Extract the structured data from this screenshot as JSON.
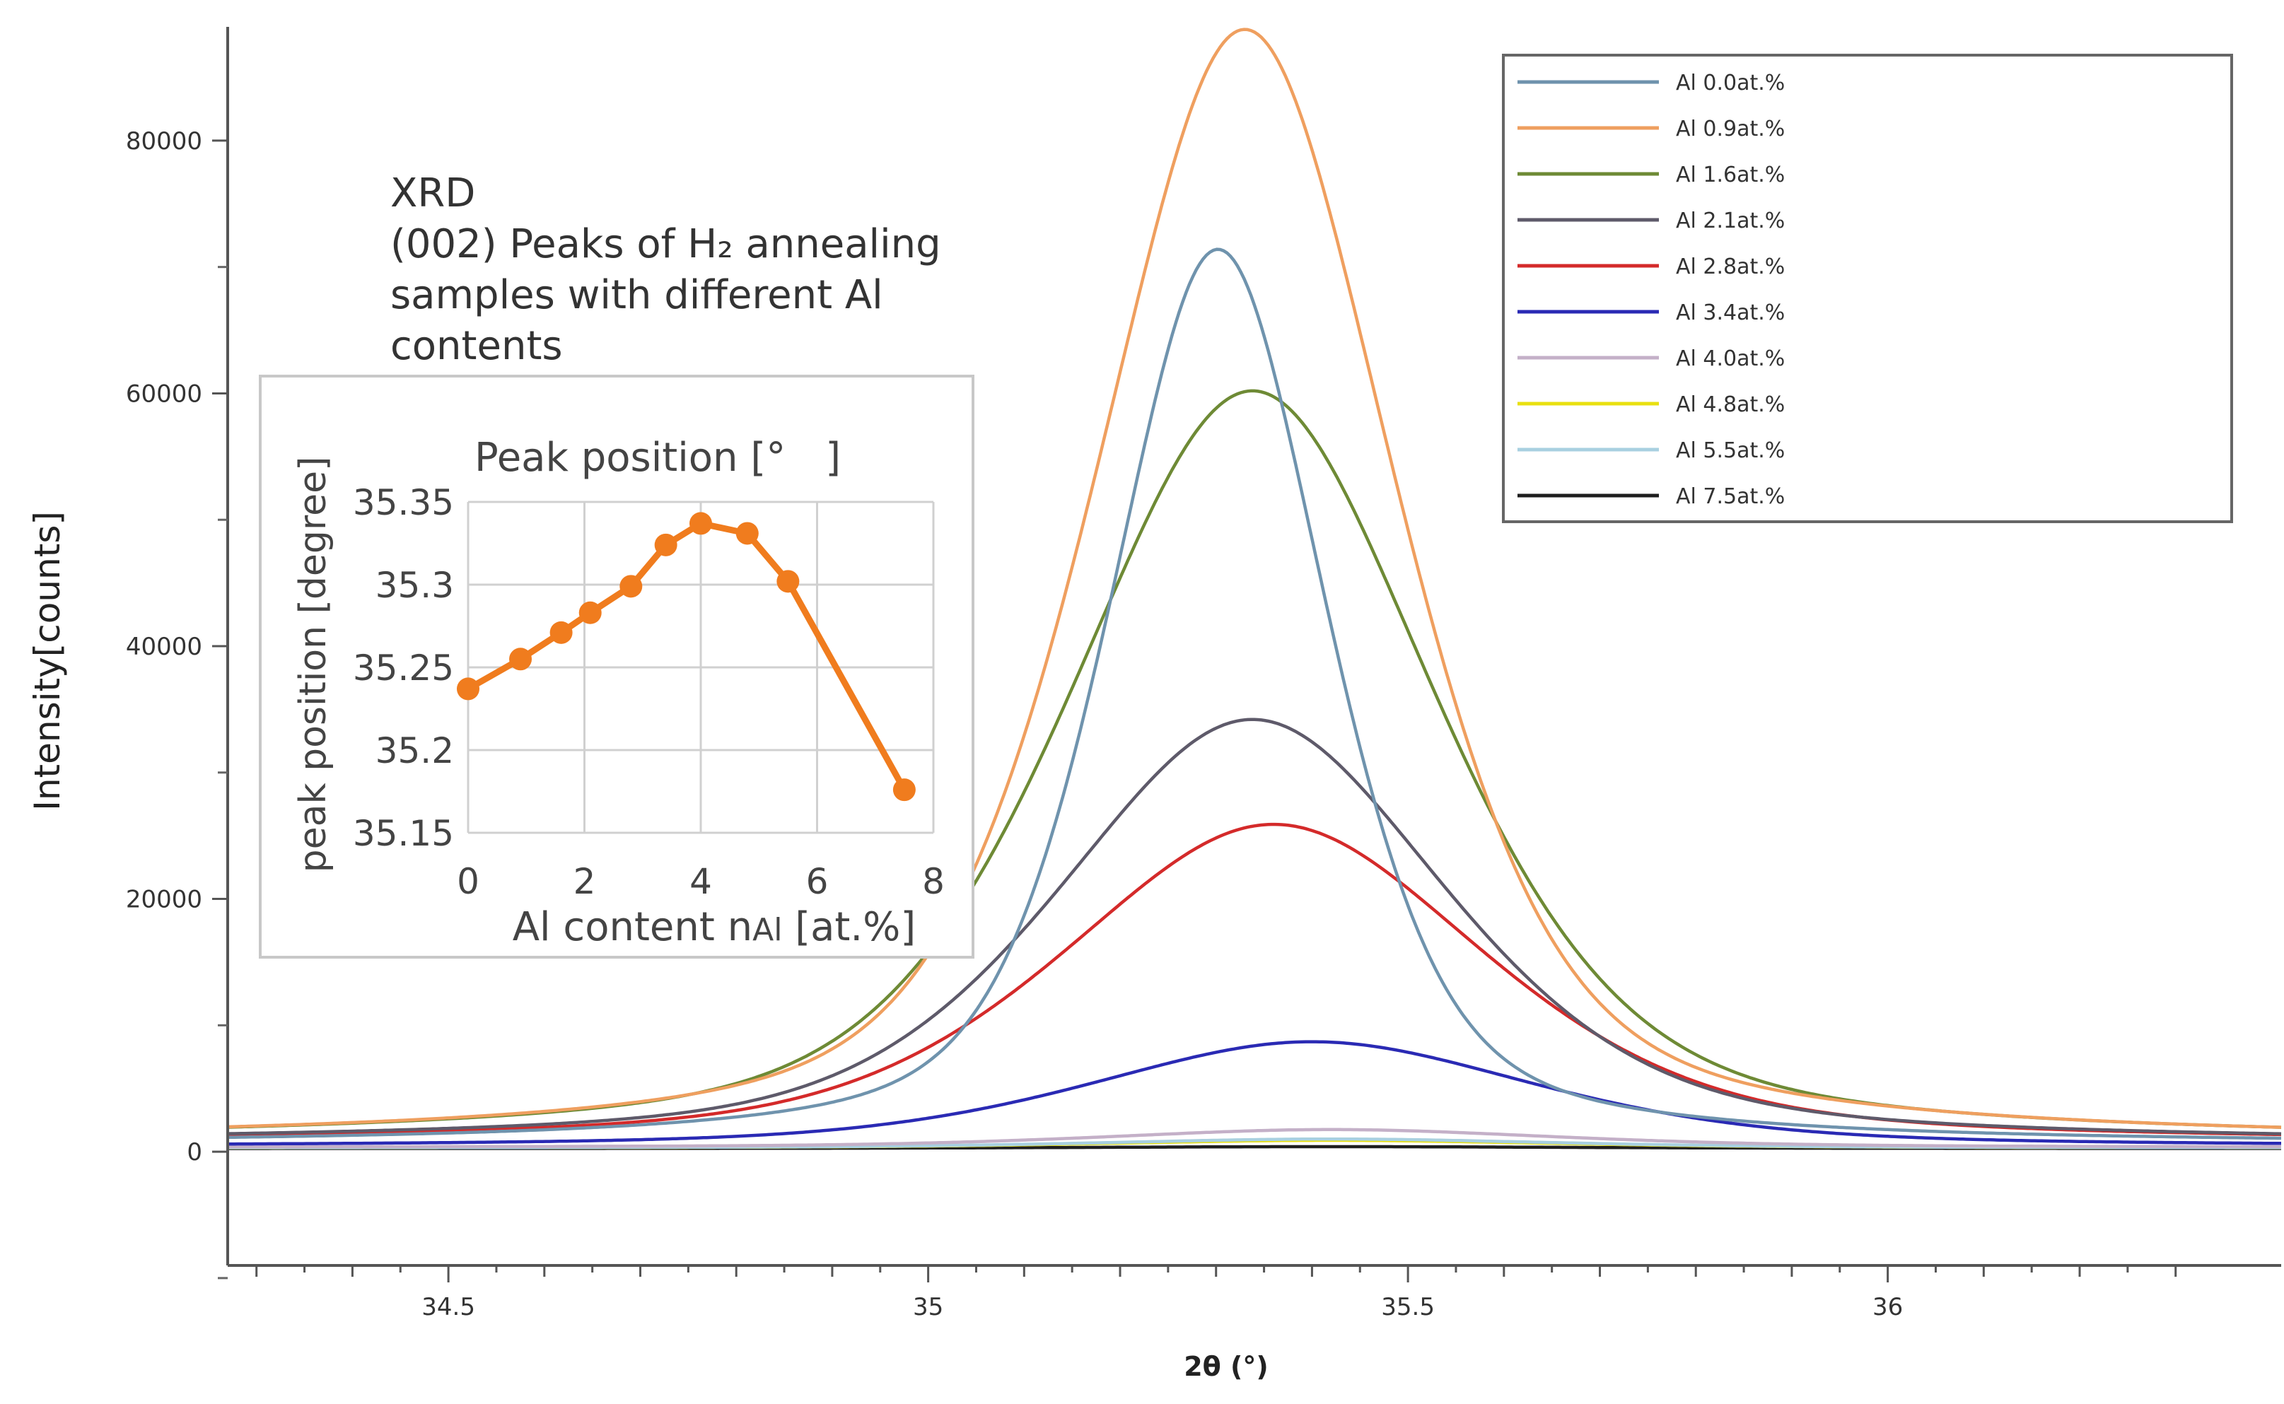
{
  "chart_data": [
    {
      "type": "line",
      "title": "",
      "xlabel": "2θ (°)",
      "ylabel": "Intensity[counts]",
      "xlim": [
        34.27,
        36.41
      ],
      "ylim": [
        -9000,
        89000
      ],
      "grid": false,
      "legend_position": "top-right",
      "x_ticks": [
        34.5,
        35,
        35.5,
        36
      ],
      "x_tick_labels": [
        "34.5",
        "35",
        "35.5",
        "36"
      ],
      "y_ticks": [
        0,
        20000,
        40000,
        60000,
        80000
      ],
      "y_tick_labels": [
        "0",
        "20000",
        "40000",
        "60000",
        "80000"
      ],
      "annotation": {
        "lines": [
          "XRD",
          "(002) Peaks of H₂ annealing",
          "samples with different Al",
          "contents"
        ]
      },
      "series_model": "pseudo-Voigt peak: baseline + amplitude * profile(x - center, width)",
      "series": [
        {
          "name": "Al 0.0at.%",
          "color": "#6f93ad",
          "center": 35.302,
          "amplitude": 70800,
          "fwhm": 0.27,
          "baseline": 600
        },
        {
          "name": "Al 0.9at.%",
          "color": "#ef9f5f",
          "center": 35.33,
          "amplitude": 88000,
          "fwhm": 0.37,
          "baseline": 800
        },
        {
          "name": "Al 1.6at.%",
          "color": "#6e8a35",
          "center": 35.338,
          "amplitude": 59400,
          "fwhm": 0.45,
          "baseline": 800
        },
        {
          "name": "Al 2.1at.%",
          "color": "#5e5a6a",
          "center": 35.338,
          "amplitude": 33500,
          "fwhm": 0.48,
          "baseline": 700
        },
        {
          "name": "Al 2.8at.%",
          "color": "#d42a2a",
          "center": 35.36,
          "amplitude": 25200,
          "fwhm": 0.52,
          "baseline": 700
        },
        {
          "name": "Al 3.4at.%",
          "color": "#2a2ab4",
          "center": 35.4,
          "amplitude": 8300,
          "fwhm": 0.55,
          "baseline": 400
        },
        {
          "name": "Al 4.0at.%",
          "color": "#c4b0c8",
          "center": 35.42,
          "amplitude": 1400,
          "fwhm": 0.55,
          "baseline": 350
        },
        {
          "name": "Al 4.8at.%",
          "color": "#e8e010",
          "center": 35.42,
          "amplitude": 600,
          "fwhm": 0.55,
          "baseline": 300
        },
        {
          "name": "Al 5.5at.%",
          "color": "#a8d0e0",
          "center": 35.42,
          "amplitude": 700,
          "fwhm": 0.55,
          "baseline": 300
        },
        {
          "name": "Al 7.5at.%",
          "color": "#1e1e1e",
          "center": 35.42,
          "amplitude": 150,
          "fwhm": 0.6,
          "baseline": 250
        }
      ]
    },
    {
      "type": "line",
      "title": "Peak position [°　]",
      "xlabel_main": "Al content n",
      "xlabel_sub": "Al",
      "xlabel_rest": " [at.%]",
      "ylabel": "peak position [degree]",
      "xlim": [
        0,
        8
      ],
      "ylim": [
        35.15,
        35.35
      ],
      "grid": true,
      "x_ticks": [
        0,
        2,
        4,
        6,
        8
      ],
      "x_tick_labels": [
        "0",
        "2",
        "4",
        "6",
        "8"
      ],
      "y_ticks": [
        35.15,
        35.2,
        35.25,
        35.3,
        35.35
      ],
      "y_tick_labels": [
        "35.15",
        "35.2",
        "35.25",
        "35.3",
        "35.35"
      ],
      "marker_color": "#f07c1e",
      "x": [
        0,
        0.9,
        1.6,
        2.1,
        2.8,
        3.4,
        4.0,
        4.8,
        5.5,
        7.5
      ],
      "y": [
        35.237,
        35.255,
        35.271,
        35.283,
        35.299,
        35.324,
        35.337,
        35.331,
        35.302,
        35.176
      ]
    }
  ]
}
